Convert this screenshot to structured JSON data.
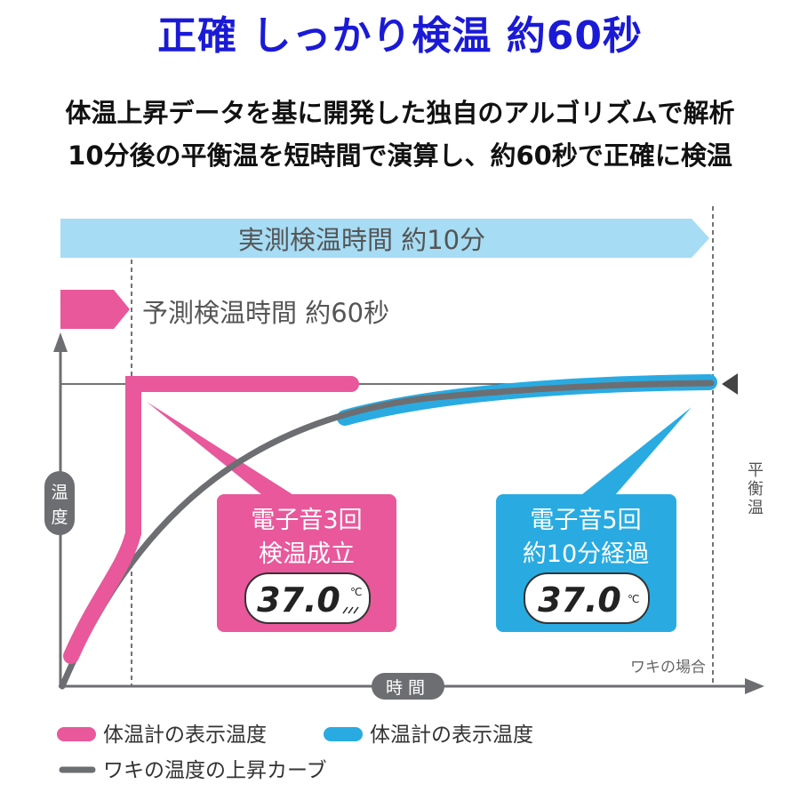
{
  "headline": "正確 しっかり検温 約60秒",
  "subtext": {
    "line1": "体温上昇データを基に開発した独自のアルゴリズムで解析",
    "line2": "10分後の平衡温を短時間で演算し、約60秒で正確に検温"
  },
  "diagram": {
    "actual_time_label": "実測検温時間 約10分",
    "predicted_time_label": "予測検温時間 約60秒",
    "y_axis_label": [
      "温",
      "度"
    ],
    "x_axis_label": "時間",
    "equilibrium_label": [
      "平",
      "衡",
      "温"
    ],
    "condition_note": "ワキの場合",
    "pink_box": {
      "line1": "電子音3回",
      "line2": "検温成立",
      "reading": "37.0",
      "unit": "℃"
    },
    "blue_box": {
      "line1": "電子音5回",
      "line2": "約10分経過",
      "reading": "37.0",
      "unit": "℃"
    },
    "legend": {
      "pink": "体温計の表示温度",
      "blue": "体温計の表示温度",
      "gray": "ワキの温度の上昇カーブ"
    },
    "colors": {
      "pink": "#e8589b",
      "blue": "#29abe2",
      "light_blue": "#a6dcf4",
      "gray": "#6d6e71",
      "headline": "#1a1ad6"
    }
  }
}
